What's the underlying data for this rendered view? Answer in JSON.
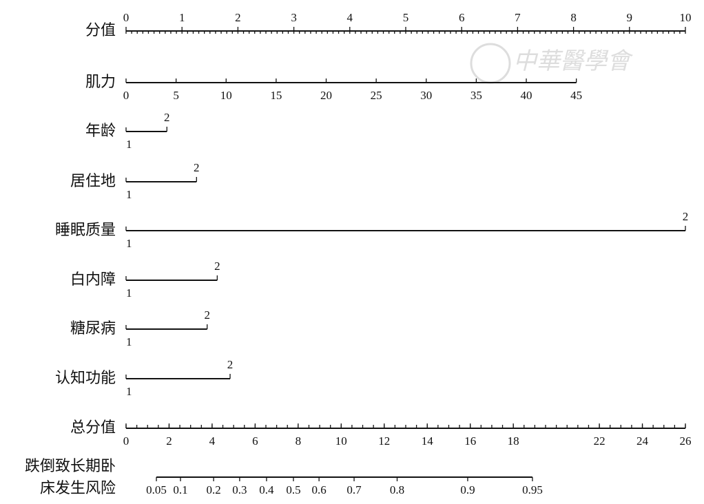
{
  "chart_data": {
    "type": "nomogram",
    "watermark": "中華醫學會",
    "points": {
      "label": "分值",
      "xlim": [
        0,
        10
      ],
      "xticks": [
        0,
        1,
        2,
        3,
        4,
        5,
        6,
        7,
        8,
        9,
        10
      ],
      "minor_step": 0.1
    },
    "variables": [
      {
        "label": "肌力",
        "xlim": [
          0,
          45
        ],
        "points": [
          0,
          8.05
        ],
        "xticks": [
          0,
          5,
          10,
          15,
          20,
          25,
          30,
          35,
          40,
          45
        ]
      },
      {
        "label": "年龄",
        "xlim": [
          1,
          2
        ],
        "points": [
          0,
          0.73
        ],
        "xticks": [
          1,
          2
        ]
      },
      {
        "label": "居住地",
        "xlim": [
          1,
          2
        ],
        "points": [
          0,
          1.26
        ],
        "xticks": [
          1,
          2
        ]
      },
      {
        "label": "睡眠质量",
        "xlim": [
          1,
          2
        ],
        "points": [
          0,
          10
        ],
        "xticks": [
          1,
          2
        ]
      },
      {
        "label": "白内障",
        "xlim": [
          1,
          2
        ],
        "points": [
          0,
          1.63
        ],
        "xticks": [
          1,
          2
        ]
      },
      {
        "label": "糖尿病",
        "xlim": [
          1,
          2
        ],
        "points": [
          0,
          1.45
        ],
        "xticks": [
          1,
          2
        ]
      },
      {
        "label": "认知功能",
        "xlim": [
          1,
          2
        ],
        "points": [
          0,
          1.86
        ],
        "xticks": [
          1,
          2
        ]
      }
    ],
    "total": {
      "label": "总分值",
      "xlim": [
        0,
        26
      ],
      "xticks": [
        0,
        2,
        4,
        6,
        8,
        10,
        12,
        14,
        16,
        18,
        22,
        24,
        26
      ],
      "minor_step": 0.5
    },
    "risk": {
      "label": [
        "跌倒致长期卧",
        "床发生风险"
      ],
      "xticks": [
        0.05,
        0.1,
        0.2,
        0.3,
        0.4,
        0.5,
        0.6,
        0.7,
        0.8,
        0.9,
        0.95
      ],
      "tick_points": [
        1.41,
        2.53,
        4.07,
        5.28,
        6.53,
        7.78,
        8.97,
        10.6,
        12.6,
        15.88,
        18.89
      ]
    }
  }
}
